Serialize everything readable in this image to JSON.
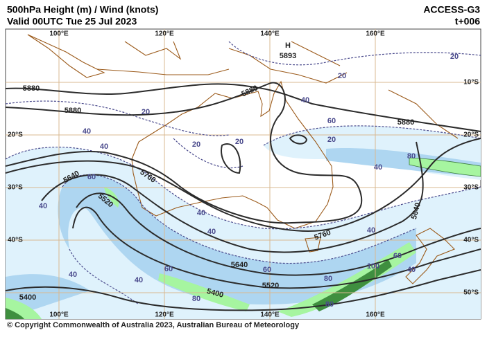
{
  "header": {
    "title": "500hPa Height (m) / Wind (knots)",
    "valid": "Valid 00UTC Tue 25 Jul 2023",
    "model": "ACCESS-G3",
    "step": "t+006"
  },
  "longitudes_top": [
    "100°E",
    "120°E",
    "140°E",
    "160°E"
  ],
  "longitudes_bottom": [
    "100°E",
    "120°E",
    "140°E",
    "160°E"
  ],
  "latitudes_left": [
    "20°S",
    "30°S",
    "40°S"
  ],
  "latitudes_right": [
    "10°S",
    "20°S",
    "30°S",
    "40°S",
    "50°S"
  ],
  "high": {
    "symbol": "H",
    "value": "5893"
  },
  "height_labels": [
    "5880",
    "5880",
    "5880",
    "5880",
    "5760",
    "5640",
    "5520",
    "5760",
    "5640",
    "5520",
    "5400",
    "5400",
    "5640"
  ],
  "wind_labels": [
    "20",
    "20",
    "20",
    "20",
    "20",
    "20",
    "40",
    "40",
    "40",
    "40",
    "40",
    "40",
    "40",
    "40",
    "40",
    "40",
    "60",
    "60",
    "60",
    "60",
    "60",
    "80",
    "80",
    "80",
    "80",
    "100",
    "40"
  ],
  "copyright": "© Copyright Commonwealth of Australia 2023, Australian Bureau of Meteorology"
}
